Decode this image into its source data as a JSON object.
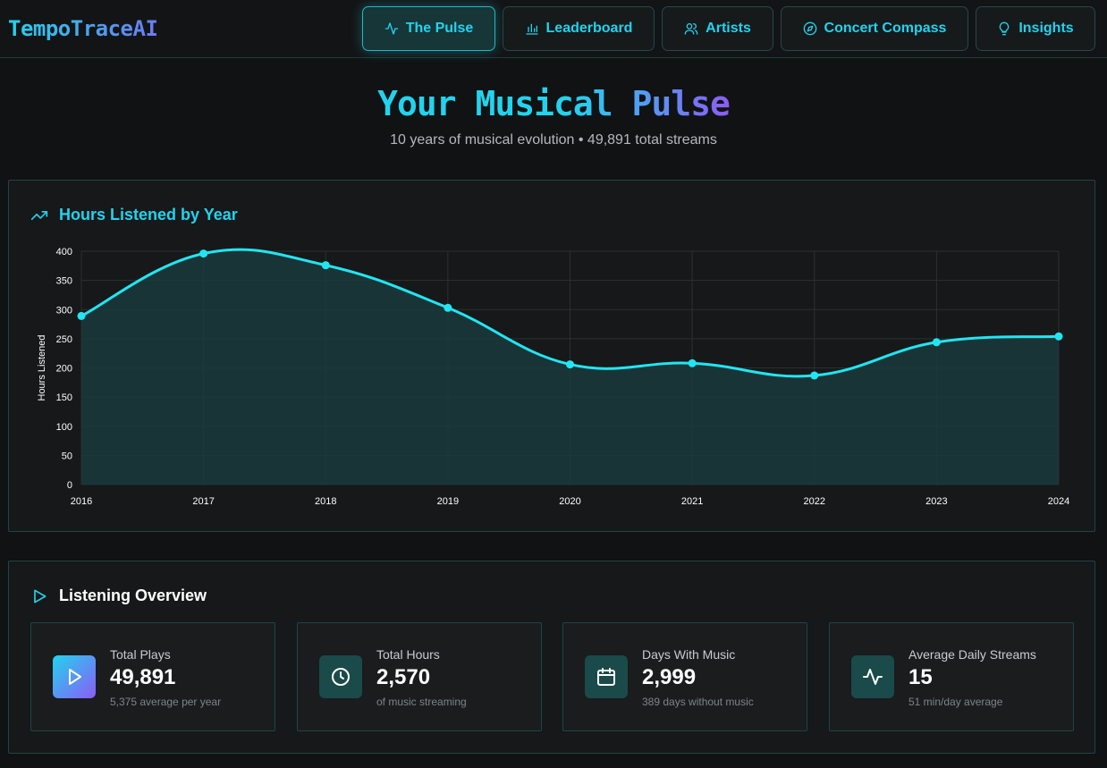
{
  "app": {
    "logo": "TempoTraceAI"
  },
  "nav": [
    {
      "label": "The Pulse",
      "icon": "activity-icon",
      "active": true
    },
    {
      "label": "Leaderboard",
      "icon": "bar-chart-icon",
      "active": false
    },
    {
      "label": "Artists",
      "icon": "users-icon",
      "active": false
    },
    {
      "label": "Concert Compass",
      "icon": "compass-icon",
      "active": false
    },
    {
      "label": "Insights",
      "icon": "lightbulb-icon",
      "active": false
    }
  ],
  "hero": {
    "title": "Your Musical Pulse",
    "subtitle": "10 years of musical evolution • 49,891 total streams"
  },
  "chart_panel": {
    "title": "Hours Listened by Year",
    "icon": "trending-up-icon"
  },
  "chart_data": {
    "type": "area",
    "title": "Hours Listened by Year",
    "xlabel": "",
    "ylabel": "Hours Listened",
    "x": [
      "2016",
      "2017",
      "2018",
      "2019",
      "2020",
      "2021",
      "2022",
      "2023",
      "2024"
    ],
    "series": [
      {
        "values": [
          289,
          396,
          376,
          303,
          206,
          208,
          187,
          244,
          254
        ]
      }
    ],
    "ylim": [
      0,
      400
    ],
    "yticks": [
      0,
      50,
      100,
      150,
      200,
      250,
      300,
      350,
      400
    ],
    "grid": true,
    "line_color": "#22e5f2",
    "fill_color": "#1a3a3c"
  },
  "overview": {
    "title": "Listening Overview",
    "icon": "play-outline-icon",
    "cards": [
      {
        "label": "Total Plays",
        "value": "49,891",
        "sub": "5,375 average per year",
        "icon": "play-icon"
      },
      {
        "label": "Total Hours",
        "value": "2,570",
        "sub": "of music streaming",
        "icon": "clock-icon"
      },
      {
        "label": "Days With Music",
        "value": "2,999",
        "sub": "389 days without music",
        "icon": "calendar-icon"
      },
      {
        "label": "Average Daily Streams",
        "value": "15",
        "sub": "51 min/day average",
        "icon": "pulse-icon"
      }
    ]
  },
  "colors": {
    "accent": "#22d3ee",
    "accent2": "#8b5cf6",
    "background": "#111213"
  }
}
